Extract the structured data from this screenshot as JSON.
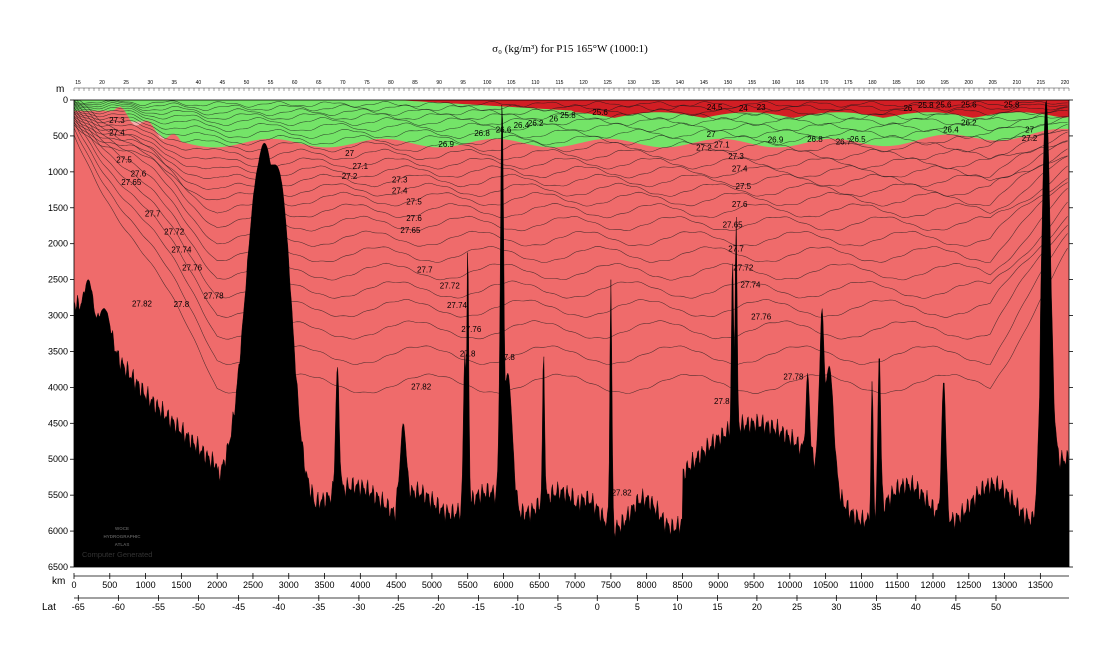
{
  "chart_data": {
    "type": "contour-section",
    "title": "σ₀ (kg/m³) for P15 165°W (1000:1)",
    "ylabel": "m",
    "xlabel": "km",
    "x2label": "Lat",
    "ylim": [
      0,
      6500
    ],
    "xlim": [
      0,
      13900
    ],
    "y_ticks": [
      0,
      500,
      1000,
      1500,
      2000,
      2500,
      3000,
      3500,
      4000,
      4500,
      5000,
      5500,
      6000,
      6500
    ],
    "x_ticks": [
      0,
      500,
      1000,
      1500,
      2000,
      2500,
      3000,
      3500,
      4000,
      4500,
      5000,
      5500,
      6000,
      6500,
      7000,
      7500,
      8000,
      8500,
      9000,
      9500,
      10000,
      10500,
      11000,
      11500,
      12000,
      12500,
      13000,
      13500
    ],
    "lat_ticks": [
      {
        "label": "-65",
        "km": 60
      },
      {
        "label": "-60",
        "km": 620
      },
      {
        "label": "-55",
        "km": 1180
      },
      {
        "label": "-50",
        "km": 1740
      },
      {
        "label": "-45",
        "km": 2300
      },
      {
        "label": "-40",
        "km": 2860
      },
      {
        "label": "-35",
        "km": 3420
      },
      {
        "label": "-30",
        "km": 3980
      },
      {
        "label": "-25",
        "km": 4530
      },
      {
        "label": "-20",
        "km": 5090
      },
      {
        "label": "-15",
        "km": 5650
      },
      {
        "label": "-10",
        "km": 6200
      },
      {
        "label": "-5",
        "km": 6760
      },
      {
        "label": "0",
        "km": 7310
      },
      {
        "label": "5",
        "km": 7870
      },
      {
        "label": "10",
        "km": 8430
      },
      {
        "label": "15",
        "km": 8990
      },
      {
        "label": "20",
        "km": 9540
      },
      {
        "label": "25",
        "km": 10100
      },
      {
        "label": "30",
        "km": 10650
      },
      {
        "label": "35",
        "km": 11210
      },
      {
        "label": "40",
        "km": 11760
      },
      {
        "label": "45",
        "km": 12320
      },
      {
        "label": "50",
        "km": 12880
      }
    ],
    "contour_levels": [
      "23",
      "24.5",
      "25.6",
      "25.8",
      "26",
      "26.2",
      "26.4",
      "26.6",
      "26.8",
      "26.9",
      "27",
      "27.1",
      "27.2",
      "27.3",
      "27.4",
      "27.5",
      "27.6",
      "27.65",
      "27.7",
      "27.72",
      "27.74",
      "27.76",
      "27.78",
      "27.8",
      "27.82"
    ],
    "fill_bands": [
      {
        "range": "< 26.0",
        "color": "#d21e24"
      },
      {
        "range": "26.0 – 27.0",
        "color": "#ef6b6b"
      },
      {
        "range": "27.0 – 27.5",
        "color": "#f6b0ad"
      },
      {
        "range": "27.5 – 27.7",
        "color": "#b5f0b0"
      },
      {
        "range": "27.7 – 27.8",
        "color": "#90e888"
      },
      {
        "range": "> 27.8",
        "color": "#74e468"
      }
    ],
    "labels_left": [
      {
        "text": "27.3",
        "x": 600,
        "y": 280
      },
      {
        "text": "27.4",
        "x": 600,
        "y": 450
      },
      {
        "text": "27.5",
        "x": 700,
        "y": 830
      },
      {
        "text": "27.6",
        "x": 900,
        "y": 1020
      },
      {
        "text": "27.65",
        "x": 800,
        "y": 1140
      },
      {
        "text": "27.7",
        "x": 1100,
        "y": 1580
      },
      {
        "text": "27.72",
        "x": 1400,
        "y": 1830
      },
      {
        "text": "27.74",
        "x": 1500,
        "y": 2080
      },
      {
        "text": "27.76",
        "x": 1650,
        "y": 2330
      },
      {
        "text": "27.78",
        "x": 1950,
        "y": 2720
      },
      {
        "text": "27.82",
        "x": 950,
        "y": 2830
      },
      {
        "text": "27.8",
        "x": 1500,
        "y": 2840
      },
      {
        "text": "27",
        "x": 3850,
        "y": 740
      },
      {
        "text": "27.1",
        "x": 4000,
        "y": 920
      },
      {
        "text": "27.2",
        "x": 3850,
        "y": 1060
      },
      {
        "text": "27.3",
        "x": 4550,
        "y": 1110
      },
      {
        "text": "27.4",
        "x": 4550,
        "y": 1260
      },
      {
        "text": "27.5",
        "x": 4750,
        "y": 1410
      },
      {
        "text": "27.6",
        "x": 4750,
        "y": 1640
      },
      {
        "text": "27.65",
        "x": 4700,
        "y": 1810
      },
      {
        "text": "27.7",
        "x": 4900,
        "y": 2360
      },
      {
        "text": "27.72",
        "x": 5250,
        "y": 2580
      },
      {
        "text": "27.74",
        "x": 5350,
        "y": 2850
      },
      {
        "text": "27.76",
        "x": 5550,
        "y": 3190
      },
      {
        "text": "27.8",
        "x": 5500,
        "y": 3530
      },
      {
        "text": "27.8",
        "x": 6050,
        "y": 3580
      },
      {
        "text": "27.82",
        "x": 4850,
        "y": 3990
      },
      {
        "text": "26.9",
        "x": 5200,
        "y": 610
      },
      {
        "text": "26.8",
        "x": 5700,
        "y": 460
      },
      {
        "text": "26.6",
        "x": 6000,
        "y": 410
      },
      {
        "text": "26.4",
        "x": 6250,
        "y": 350
      },
      {
        "text": "26.2",
        "x": 6450,
        "y": 320
      },
      {
        "text": "26",
        "x": 6700,
        "y": 260
      },
      {
        "text": "25.8",
        "x": 6900,
        "y": 210
      },
      {
        "text": "25.6",
        "x": 7350,
        "y": 170
      },
      {
        "text": "26.2",
        "x": 12500,
        "y": 310
      },
      {
        "text": "26.4",
        "x": 12250,
        "y": 410
      },
      {
        "text": "27",
        "x": 13350,
        "y": 410
      },
      {
        "text": "27.2",
        "x": 13350,
        "y": 530
      },
      {
        "text": "26.5",
        "x": 10950,
        "y": 540
      },
      {
        "text": "26.7",
        "x": 10750,
        "y": 580
      },
      {
        "text": "26.8",
        "x": 10350,
        "y": 540
      },
      {
        "text": "26.9",
        "x": 9800,
        "y": 550
      },
      {
        "text": "27",
        "x": 8900,
        "y": 470
      },
      {
        "text": "27.1",
        "x": 9050,
        "y": 620
      },
      {
        "text": "27.2",
        "x": 8800,
        "y": 660
      },
      {
        "text": "27.3",
        "x": 9250,
        "y": 780
      },
      {
        "text": "27.4",
        "x": 9300,
        "y": 950
      },
      {
        "text": "27.5",
        "x": 9350,
        "y": 1200
      },
      {
        "text": "27.6",
        "x": 9300,
        "y": 1450
      },
      {
        "text": "27.65",
        "x": 9200,
        "y": 1730
      },
      {
        "text": "27.7",
        "x": 9250,
        "y": 2070
      },
      {
        "text": "27.72",
        "x": 9350,
        "y": 2330
      },
      {
        "text": "27.74",
        "x": 9450,
        "y": 2570
      },
      {
        "text": "27.76",
        "x": 9600,
        "y": 3010
      },
      {
        "text": "27.78",
        "x": 10050,
        "y": 3850
      },
      {
        "text": "27.8",
        "x": 9050,
        "y": 4190
      },
      {
        "text": "27.82",
        "x": 7650,
        "y": 5460
      },
      {
        "text": "24.5",
        "x": 8950,
        "y": 100
      },
      {
        "text": "24",
        "x": 9350,
        "y": 110
      },
      {
        "text": "23",
        "x": 9600,
        "y": 100
      },
      {
        "text": "25.6",
        "x": 12150,
        "y": 60
      },
      {
        "text": "25.8",
        "x": 11900,
        "y": 70
      },
      {
        "text": "26",
        "x": 11650,
        "y": 110
      },
      {
        "text": "25.6",
        "x": 12500,
        "y": 60
      },
      {
        "text": "25.8",
        "x": 13100,
        "y": 60
      }
    ],
    "station_numbers": [
      "15",
      "20",
      "25",
      "30",
      "35",
      "40",
      "45",
      "50",
      "55",
      "60",
      "65",
      "70",
      "75",
      "80",
      "85",
      "90",
      "95",
      "100",
      "105",
      "110",
      "115",
      "120",
      "125",
      "130",
      "135",
      "140",
      "145",
      "150",
      "155",
      "160",
      "165",
      "170",
      "175",
      "180",
      "185",
      "190",
      "195",
      "200",
      "205",
      "210",
      "215",
      "220"
    ],
    "watermark_lines": [
      "WOCE",
      "HYDROGRAPHIC",
      "ATLAS"
    ],
    "credit": "Computer Generated"
  }
}
